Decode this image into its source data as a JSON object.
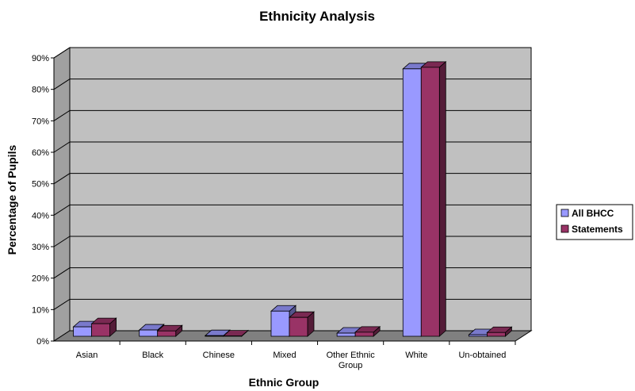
{
  "chart_data": {
    "type": "bar",
    "title": "Ethnicity Analysis",
    "xlabel": "Ethnic Group",
    "ylabel": "Percentage of Pupils",
    "ylim": [
      0,
      90
    ],
    "yticks": [
      "0%",
      "10%",
      "20%",
      "30%",
      "40%",
      "50%",
      "60%",
      "70%",
      "80%",
      "90%"
    ],
    "categories": [
      [
        "Asian"
      ],
      [
        "Black"
      ],
      [
        "Chinese"
      ],
      [
        "Mixed"
      ],
      [
        "Other Ethnic",
        "Group"
      ],
      [
        "White"
      ],
      [
        "Un-obtained"
      ]
    ],
    "series": [
      {
        "name": "All BHCC",
        "color": "#9999ff",
        "values": [
          3,
          2,
          0.2,
          8,
          1,
          85,
          0.5
        ]
      },
      {
        "name": "Statements",
        "color": "#993366",
        "values": [
          4,
          1.7,
          0.1,
          6,
          1.3,
          85.5,
          1.2
        ]
      }
    ],
    "grid": true,
    "legend_position": "right",
    "plot_background": "#c0c0c0",
    "style": "3d-clustered-column"
  }
}
